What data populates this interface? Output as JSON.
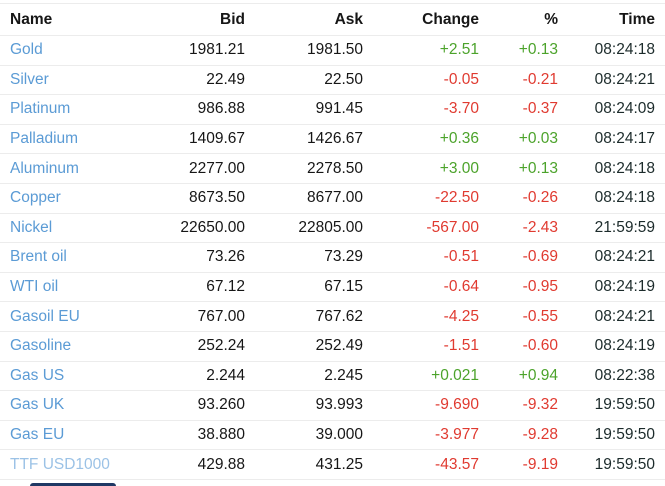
{
  "table": {
    "columns": [
      {
        "key": "name",
        "label": "Name"
      },
      {
        "key": "bid",
        "label": "Bid"
      },
      {
        "key": "ask",
        "label": "Ask"
      },
      {
        "key": "change",
        "label": "Change"
      },
      {
        "key": "pct",
        "label": "%"
      },
      {
        "key": "time",
        "label": "Time"
      }
    ],
    "rows": [
      {
        "name": "Gold",
        "bid": "1981.21",
        "ask": "1981.50",
        "change": "+2.51",
        "pct": "+0.13",
        "time": "08:24:18",
        "direction": "up",
        "name_style": "normal"
      },
      {
        "name": "Silver",
        "bid": "22.49",
        "ask": "22.50",
        "change": "-0.05",
        "pct": "-0.21",
        "time": "08:24:21",
        "direction": "down",
        "name_style": "normal"
      },
      {
        "name": "Platinum",
        "bid": "986.88",
        "ask": "991.45",
        "change": "-3.70",
        "pct": "-0.37",
        "time": "08:24:09",
        "direction": "down",
        "name_style": "normal"
      },
      {
        "name": "Palladium",
        "bid": "1409.67",
        "ask": "1426.67",
        "change": "+0.36",
        "pct": "+0.03",
        "time": "08:24:17",
        "direction": "up",
        "name_style": "normal"
      },
      {
        "name": "Aluminum",
        "bid": "2277.00",
        "ask": "2278.50",
        "change": "+3.00",
        "pct": "+0.13",
        "time": "08:24:18",
        "direction": "up",
        "name_style": "normal"
      },
      {
        "name": "Copper",
        "bid": "8673.50",
        "ask": "8677.00",
        "change": "-22.50",
        "pct": "-0.26",
        "time": "08:24:18",
        "direction": "down",
        "name_style": "normal"
      },
      {
        "name": "Nickel",
        "bid": "22650.00",
        "ask": "22805.00",
        "change": "-567.00",
        "pct": "-2.43",
        "time": "21:59:59",
        "direction": "down",
        "name_style": "normal"
      },
      {
        "name": "Brent oil",
        "bid": "73.26",
        "ask": "73.29",
        "change": "-0.51",
        "pct": "-0.69",
        "time": "08:24:21",
        "direction": "down",
        "name_style": "normal"
      },
      {
        "name": "WTI oil",
        "bid": "67.12",
        "ask": "67.15",
        "change": "-0.64",
        "pct": "-0.95",
        "time": "08:24:19",
        "direction": "down",
        "name_style": "normal"
      },
      {
        "name": "Gasoil EU",
        "bid": "767.00",
        "ask": "767.62",
        "change": "-4.25",
        "pct": "-0.55",
        "time": "08:24:21",
        "direction": "down",
        "name_style": "normal"
      },
      {
        "name": "Gasoline",
        "bid": "252.24",
        "ask": "252.49",
        "change": "-1.51",
        "pct": "-0.60",
        "time": "08:24:19",
        "direction": "down",
        "name_style": "normal"
      },
      {
        "name": "Gas US",
        "bid": "2.244",
        "ask": "2.245",
        "change": "+0.021",
        "pct": "+0.94",
        "time": "08:22:38",
        "direction": "up",
        "name_style": "normal"
      },
      {
        "name": "Gas UK",
        "bid": "93.260",
        "ask": "93.993",
        "change": "-9.690",
        "pct": "-9.32",
        "time": "19:59:50",
        "direction": "down",
        "name_style": "normal"
      },
      {
        "name": "Gas EU",
        "bid": "38.880",
        "ask": "39.000",
        "change": "-3.977",
        "pct": "-9.28",
        "time": "19:59:50",
        "direction": "down",
        "name_style": "normal"
      },
      {
        "name": "TTF USD1000",
        "bid": "429.88",
        "ask": "431.25",
        "change": "-43.57",
        "pct": "-9.19",
        "time": "19:59:50",
        "direction": "down",
        "name_style": "light"
      }
    ]
  },
  "colors": {
    "up": "#4ca32b",
    "down": "#e03a30",
    "name_link": "#5b9bd5",
    "name_link_light": "#9bc2e6",
    "header_text": "#161616",
    "divider": "#ececec",
    "bottom_bar": "#1f3864"
  }
}
